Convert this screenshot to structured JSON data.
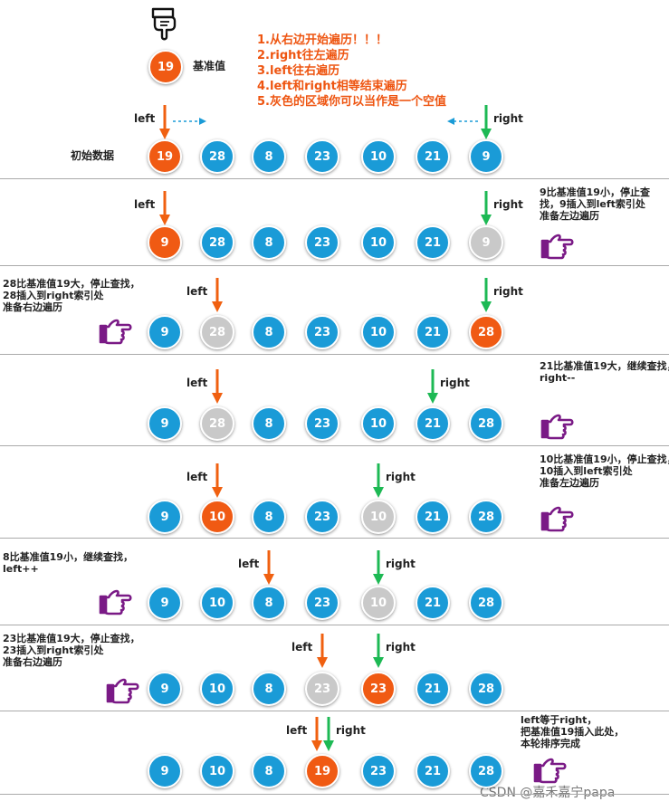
{
  "pivot": {
    "label": "基准值",
    "value": "19"
  },
  "instructions": [
    "1.从右边开始遍历！！！",
    "2.right往左遍历",
    "3.left往右遍历",
    "4.left和right相等结束遍历",
    "5.灰色的区域你可以当作是一个空值"
  ],
  "pointer_labels": {
    "left": "left",
    "right": "right"
  },
  "initial_label": "初始数据",
  "watermark": "CSDN @嘉禾嘉宁papa",
  "colors": {
    "blue": "#1a9bd7",
    "orange": "#f05a13",
    "gray": "#c9c9c9",
    "left_arrow": "#f06010",
    "right_arrow": "#1db954",
    "hand": "#7a1a86"
  },
  "steps": [
    {
      "values": [
        "19",
        "28",
        "8",
        "23",
        "10",
        "21",
        "9"
      ],
      "states": [
        "orange",
        "blue",
        "blue",
        "blue",
        "blue",
        "blue",
        "blue"
      ],
      "left": 0,
      "right": 6,
      "note": "",
      "note_side": "none"
    },
    {
      "values": [
        "9",
        "28",
        "8",
        "23",
        "10",
        "21",
        "9"
      ],
      "states": [
        "orange",
        "blue",
        "blue",
        "blue",
        "blue",
        "blue",
        "gray"
      ],
      "left": 0,
      "right": 6,
      "note": "9比基准值19小，停止查\n找，9插入到left索引处\n准备左边遍历",
      "note_side": "right"
    },
    {
      "values": [
        "9",
        "28",
        "8",
        "23",
        "10",
        "21",
        "28"
      ],
      "states": [
        "blue",
        "gray",
        "blue",
        "blue",
        "blue",
        "blue",
        "orange"
      ],
      "left": 1,
      "right": 6,
      "note": "28比基准值19大，停止查找，\n28插入到right索引处\n准备右边遍历",
      "note_side": "left"
    },
    {
      "values": [
        "9",
        "28",
        "8",
        "23",
        "10",
        "21",
        "28"
      ],
      "states": [
        "blue",
        "gray",
        "blue",
        "blue",
        "blue",
        "blue",
        "blue"
      ],
      "left": 1,
      "right": 5,
      "note": "21比基准值19大，继续查找，\nright--",
      "note_side": "right"
    },
    {
      "values": [
        "9",
        "10",
        "8",
        "23",
        "10",
        "21",
        "28"
      ],
      "states": [
        "blue",
        "orange",
        "blue",
        "blue",
        "gray",
        "blue",
        "blue"
      ],
      "left": 1,
      "right": 4,
      "note": "10比基准值19小，停止查找，\n10插入到left索引处\n准备左边遍历",
      "note_side": "right"
    },
    {
      "values": [
        "9",
        "10",
        "8",
        "23",
        "10",
        "21",
        "28"
      ],
      "states": [
        "blue",
        "blue",
        "blue",
        "blue",
        "gray",
        "blue",
        "blue"
      ],
      "left": 2,
      "right": 4,
      "note": "8比基准值19小，继续查找，\nleft++",
      "note_side": "left"
    },
    {
      "values": [
        "9",
        "10",
        "8",
        "23",
        "23",
        "21",
        "28"
      ],
      "states": [
        "blue",
        "blue",
        "blue",
        "gray",
        "orange",
        "blue",
        "blue"
      ],
      "left": 3,
      "right": 4,
      "note": "23比基准值19大，停止查找，\n23插入到right索引处\n准备右边遍历",
      "note_side": "left"
    },
    {
      "values": [
        "9",
        "10",
        "8",
        "19",
        "23",
        "21",
        "28"
      ],
      "states": [
        "blue",
        "blue",
        "blue",
        "orange",
        "blue",
        "blue",
        "blue"
      ],
      "left": 3,
      "right": 3,
      "note": "left等于right，\n把基准值19插入此处，\n本轮排序完成",
      "note_side": "right"
    }
  ]
}
